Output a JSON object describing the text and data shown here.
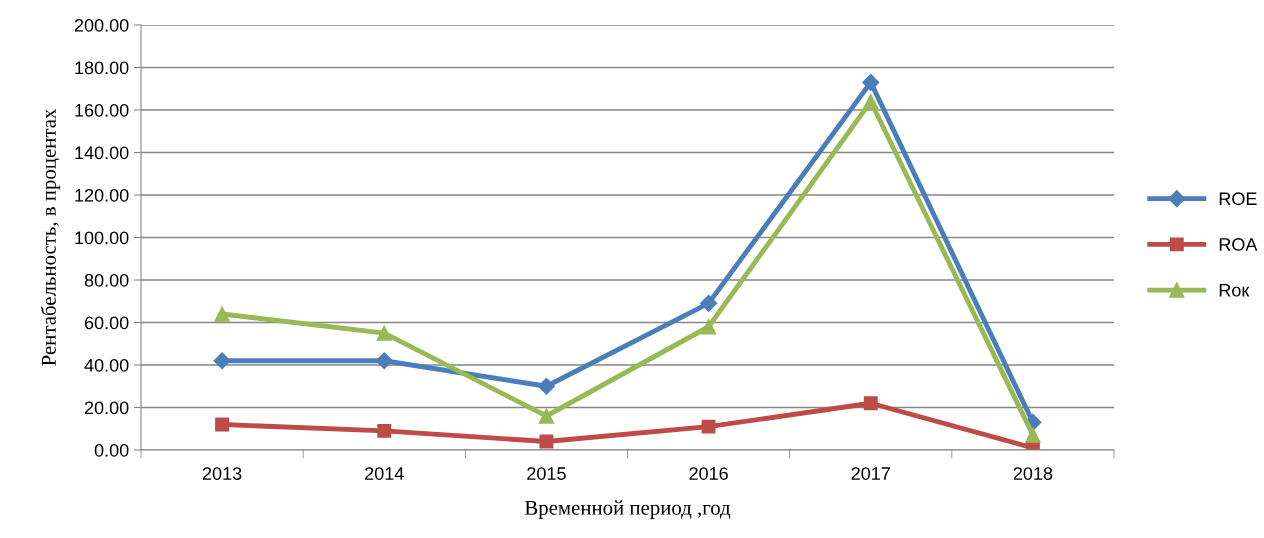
{
  "chart_data": {
    "type": "line",
    "xlabel": "Временной период ,год",
    "ylabel": "Рентабельность, в процентах",
    "categories": [
      "2013",
      "2014",
      "2015",
      "2016",
      "2017",
      "2018"
    ],
    "series": [
      {
        "name": "ROE",
        "color": "#4a7ebb",
        "marker": "diamond",
        "values": [
          42,
          42,
          30,
          69,
          173,
          13
        ]
      },
      {
        "name": "ROA",
        "color": "#be4b48",
        "marker": "square",
        "values": [
          12,
          9,
          4,
          11,
          22,
          1
        ]
      },
      {
        "name": "Rок",
        "color": "#98b954",
        "marker": "triangle",
        "values": [
          64,
          55,
          16,
          58,
          164,
          7
        ]
      }
    ],
    "ylim": [
      0,
      200
    ],
    "yticks": [
      {
        "value": 0,
        "label": "0.00"
      },
      {
        "value": 20,
        "label": "20.00"
      },
      {
        "value": 40,
        "label": "40.00"
      },
      {
        "value": 60,
        "label": "60.00"
      },
      {
        "value": 80,
        "label": "80.00"
      },
      {
        "value": 100,
        "label": "100.00"
      },
      {
        "value": 120,
        "label": "120.00"
      },
      {
        "value": 140,
        "label": "140.00"
      },
      {
        "value": 160,
        "label": "160.00"
      },
      {
        "value": 180,
        "label": "180.00"
      },
      {
        "value": 200,
        "label": "200.00"
      }
    ],
    "grid": "y",
    "legend": "right",
    "line_style": "solid"
  }
}
